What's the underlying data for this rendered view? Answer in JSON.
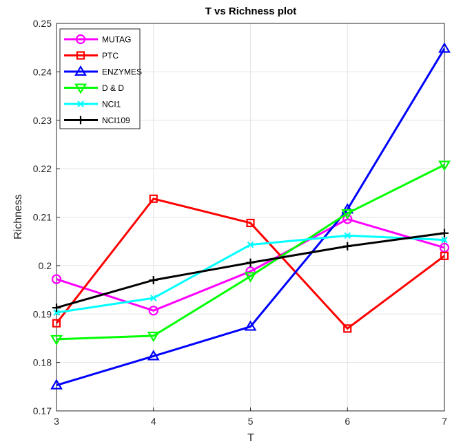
{
  "chart_data": {
    "type": "line",
    "title": "T vs Richness plot",
    "xlabel": "T",
    "ylabel": "Richness",
    "x": [
      3,
      4,
      5,
      6,
      7
    ],
    "xlim": [
      3,
      7
    ],
    "ylim": [
      0.17,
      0.25
    ],
    "xticks": [
      "3",
      "4",
      "5",
      "6",
      "7"
    ],
    "yticks": [
      "0.17",
      "0.18",
      "0.19",
      "0.2",
      "0.21",
      "0.22",
      "0.23",
      "0.24",
      "0.25"
    ],
    "grid": true,
    "legend_position": "top-left",
    "series": [
      {
        "name": "MUTAG",
        "color": "#ff00ff",
        "marker": "circle",
        "values": [
          0.1972,
          0.1907,
          0.1988,
          0.2096,
          0.2037
        ]
      },
      {
        "name": "PTC",
        "color": "#ff0000",
        "marker": "square",
        "values": [
          0.1881,
          0.2138,
          0.2088,
          0.187,
          0.202
        ]
      },
      {
        "name": "ENZYMES",
        "color": "#0000ff",
        "marker": "triangle-up",
        "values": [
          0.1753,
          0.1813,
          0.1874,
          0.2116,
          0.2448
        ]
      },
      {
        "name": "D & D",
        "color": "#00ff00",
        "marker": "triangle-down",
        "values": [
          0.1848,
          0.1855,
          0.1978,
          0.2108,
          0.2208
        ]
      },
      {
        "name": "NCI1",
        "color": "#00ffff",
        "marker": "x",
        "values": [
          0.1903,
          0.1933,
          0.2043,
          0.2062,
          0.2053
        ]
      },
      {
        "name": "NCI109",
        "color": "#000000",
        "marker": "plus",
        "values": [
          0.1913,
          0.197,
          0.2006,
          0.204,
          0.2067
        ]
      }
    ]
  }
}
